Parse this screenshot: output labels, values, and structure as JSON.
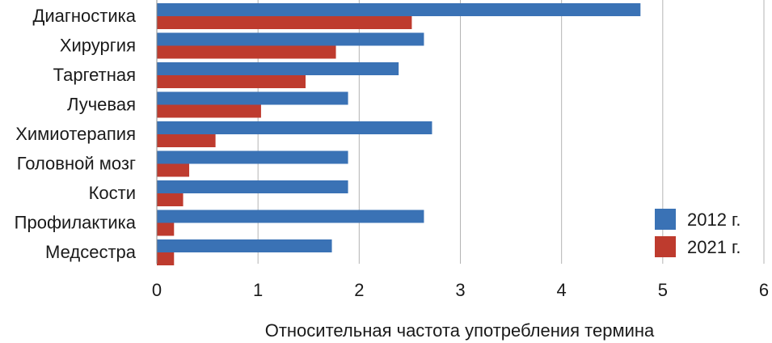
{
  "chart_data": {
    "type": "bar",
    "orientation": "horizontal",
    "title": "",
    "xlabel": "Относительная частота употребления термина",
    "ylabel": "",
    "xlim": [
      0,
      6
    ],
    "xticks": [
      0,
      1,
      2,
      3,
      4,
      5,
      6
    ],
    "grid": true,
    "legend_position": "bottom-right",
    "categories": [
      "Диагностика",
      "Хирургия",
      "Таргетная",
      "Лучевая",
      "Химиотерапия",
      "Головной мозг",
      "Кости",
      "Профилактика",
      "Медсестра"
    ],
    "series": [
      {
        "name": "2012 г.",
        "color": "#3a72b5",
        "values": [
          4.78,
          2.64,
          2.39,
          1.89,
          2.72,
          1.89,
          1.89,
          2.64,
          1.73
        ]
      },
      {
        "name": "2021 г.",
        "color": "#be3b2e",
        "values": [
          2.52,
          1.77,
          1.47,
          1.03,
          0.58,
          0.32,
          0.26,
          0.17,
          0.17
        ]
      }
    ]
  }
}
